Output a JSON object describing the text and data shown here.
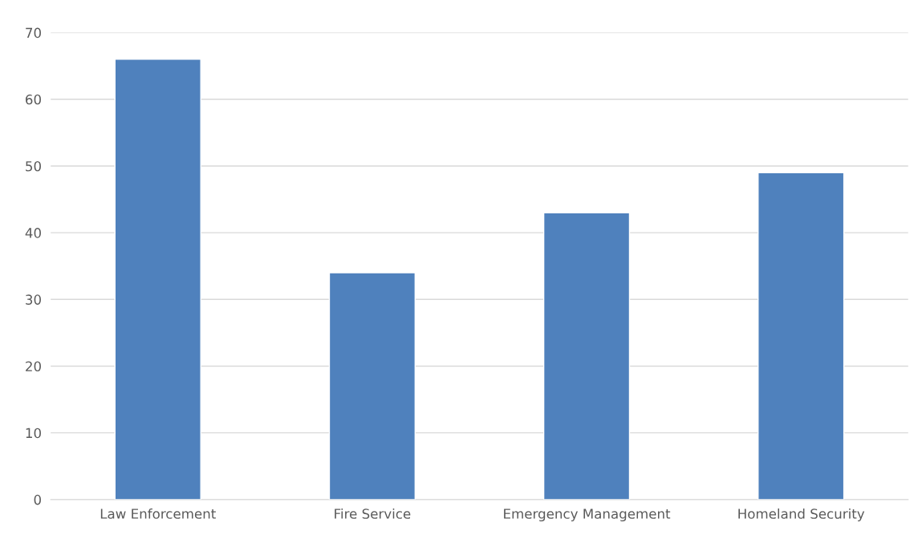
{
  "chart_data": {
    "type": "bar",
    "categories": [
      "Law Enforcement",
      "Fire Service",
      "Emergency Management",
      "Homeland Security"
    ],
    "values": [
      66,
      34,
      43,
      49
    ],
    "color": "#4f81bd",
    "ylim": [
      0,
      70
    ],
    "yticks": [
      0,
      10,
      20,
      30,
      40,
      50,
      60,
      70
    ],
    "grid": "y"
  }
}
